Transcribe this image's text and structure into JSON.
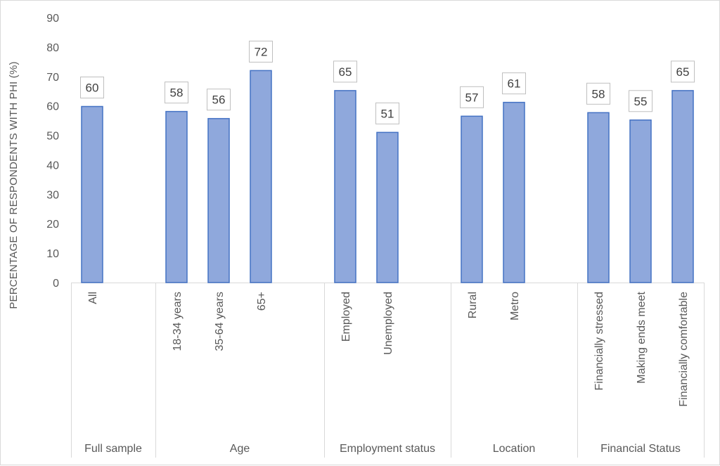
{
  "chart_data": {
    "type": "bar",
    "ylabel": "PERCENTAGE OF RESPONDENTS WITH PHI (%)",
    "xlabel": "",
    "ylim": [
      0,
      90
    ],
    "y_ticks": [
      0,
      10,
      20,
      30,
      40,
      50,
      60,
      70,
      80,
      90
    ],
    "grid": false,
    "legend": "none",
    "bar_color": "#8FA8DC",
    "bar_edge_color": "#4472C4",
    "groups": [
      {
        "name": "Full sample",
        "categories": [
          "All"
        ]
      },
      {
        "name": "Age",
        "categories": [
          "18-34 years",
          "35-64 years",
          "65+"
        ]
      },
      {
        "name": "Employment status",
        "categories": [
          "Employed",
          "Unemployed"
        ]
      },
      {
        "name": "Location",
        "categories": [
          "Rural",
          "Metro"
        ]
      },
      {
        "name": "Financial Status",
        "categories": [
          "Financially stressed",
          "Making ends meet",
          "Financially comfortable"
        ]
      }
    ],
    "categories": [
      "All",
      "18-34 years",
      "35-64 years",
      "65+",
      "Employed",
      "Unemployed",
      "Rural",
      "Metro",
      "Financially stressed",
      "Making ends meet",
      "Financially comfortable"
    ],
    "values": [
      59.8,
      58.1,
      55.7,
      72,
      65.2,
      51,
      56.5,
      61.2,
      57.7,
      55.2,
      65.2
    ],
    "data_labels": [
      "60",
      "58",
      "56",
      "72",
      "65",
      "51",
      "57",
      "61",
      "58",
      "55",
      "65"
    ]
  }
}
